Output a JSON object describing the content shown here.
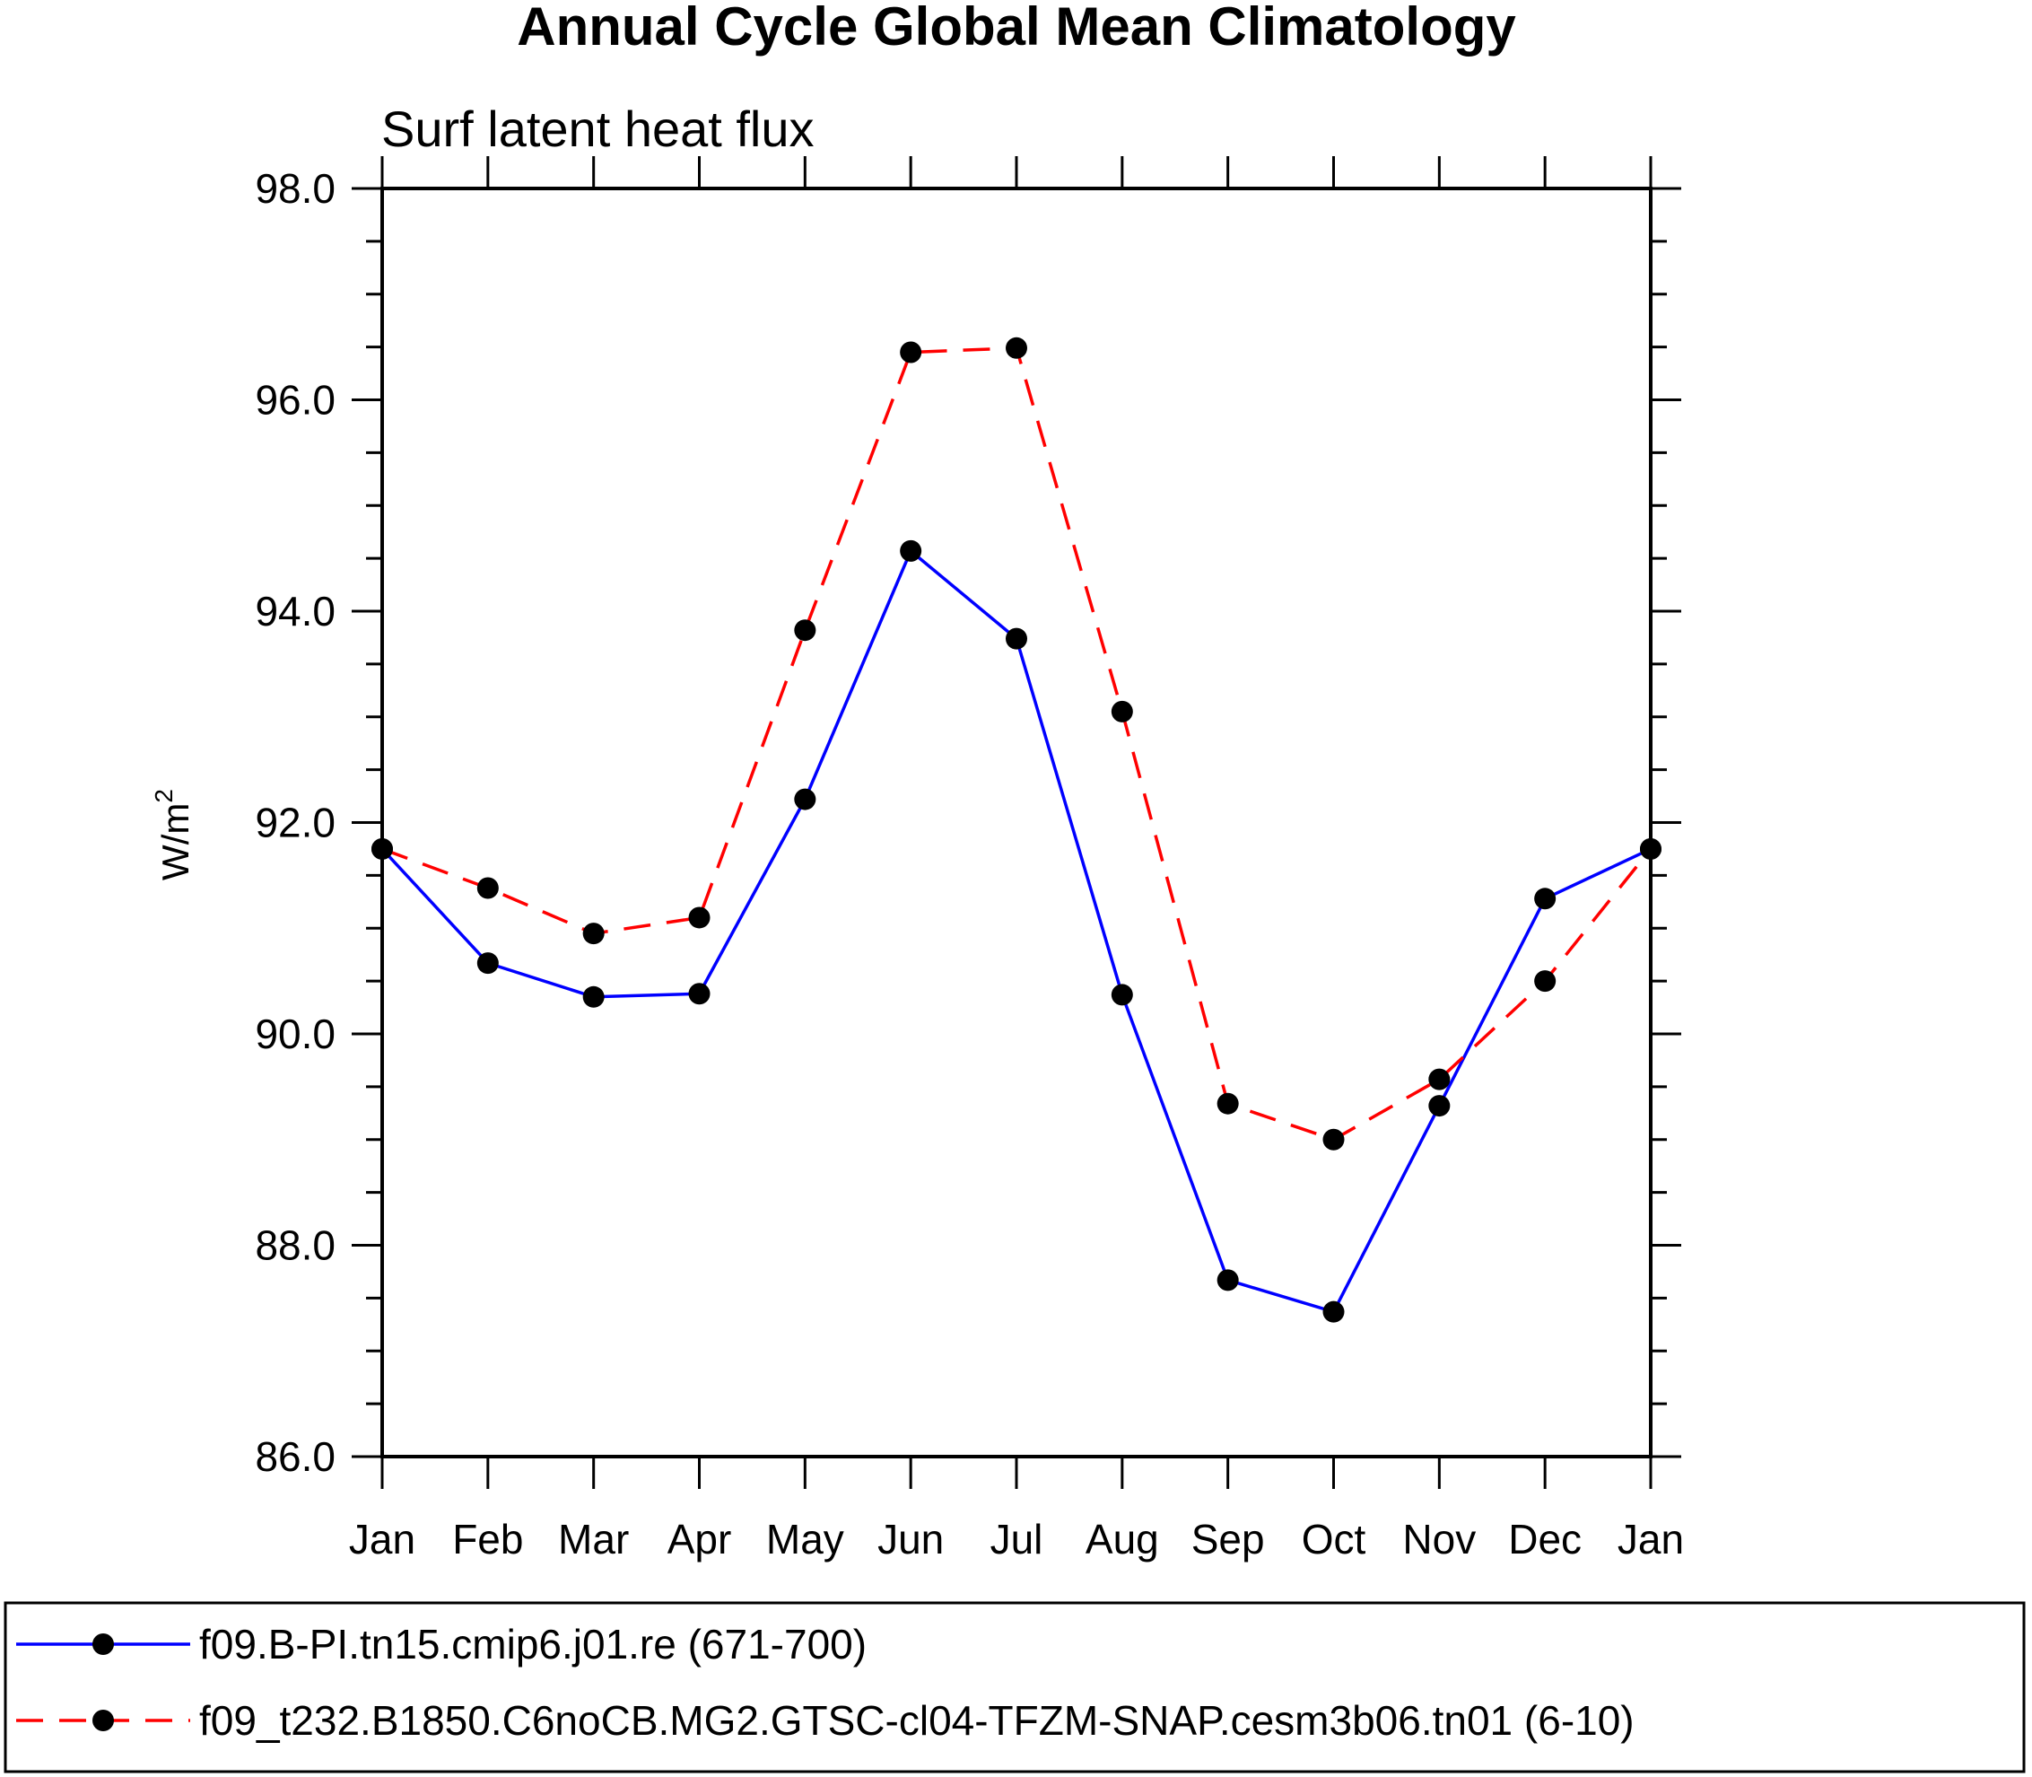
{
  "chart_data": {
    "type": "line",
    "title": "Annual Cycle Global Mean Climatology",
    "subtitle": "Surf latent heat flux",
    "ylabel_base": "W/m",
    "ylabel_sup": "2",
    "categories": [
      "Jan",
      "Feb",
      "Mar",
      "Apr",
      "May",
      "Jun",
      "Jul",
      "Aug",
      "Sep",
      "Oct",
      "Nov",
      "Dec",
      "Jan"
    ],
    "ylim": [
      86.0,
      98.0
    ],
    "yticks": [
      "86.0",
      "88.0",
      "90.0",
      "92.0",
      "94.0",
      "96.0",
      "98.0"
    ],
    "series": [
      {
        "name": "f09.B-PI.tn15.cmip6.j01.re (671-700)",
        "color": "#0000ff",
        "style": "solid",
        "values": [
          91.75,
          90.67,
          90.35,
          90.38,
          92.22,
          94.57,
          93.74,
          90.37,
          87.67,
          87.37,
          89.32,
          91.28,
          91.75
        ]
      },
      {
        "name": "f09_t232.B1850.C6noCB.MG2.GTSC-cl04-TFZM-SNAP.cesm3b06.tn01 (6-10)",
        "color": "#ff0000",
        "style": "dashed",
        "values": [
          91.75,
          91.38,
          90.95,
          91.1,
          93.82,
          96.45,
          96.49,
          93.05,
          89.34,
          89.0,
          89.57,
          90.5,
          91.75
        ]
      }
    ],
    "legend_position": "bottom"
  }
}
